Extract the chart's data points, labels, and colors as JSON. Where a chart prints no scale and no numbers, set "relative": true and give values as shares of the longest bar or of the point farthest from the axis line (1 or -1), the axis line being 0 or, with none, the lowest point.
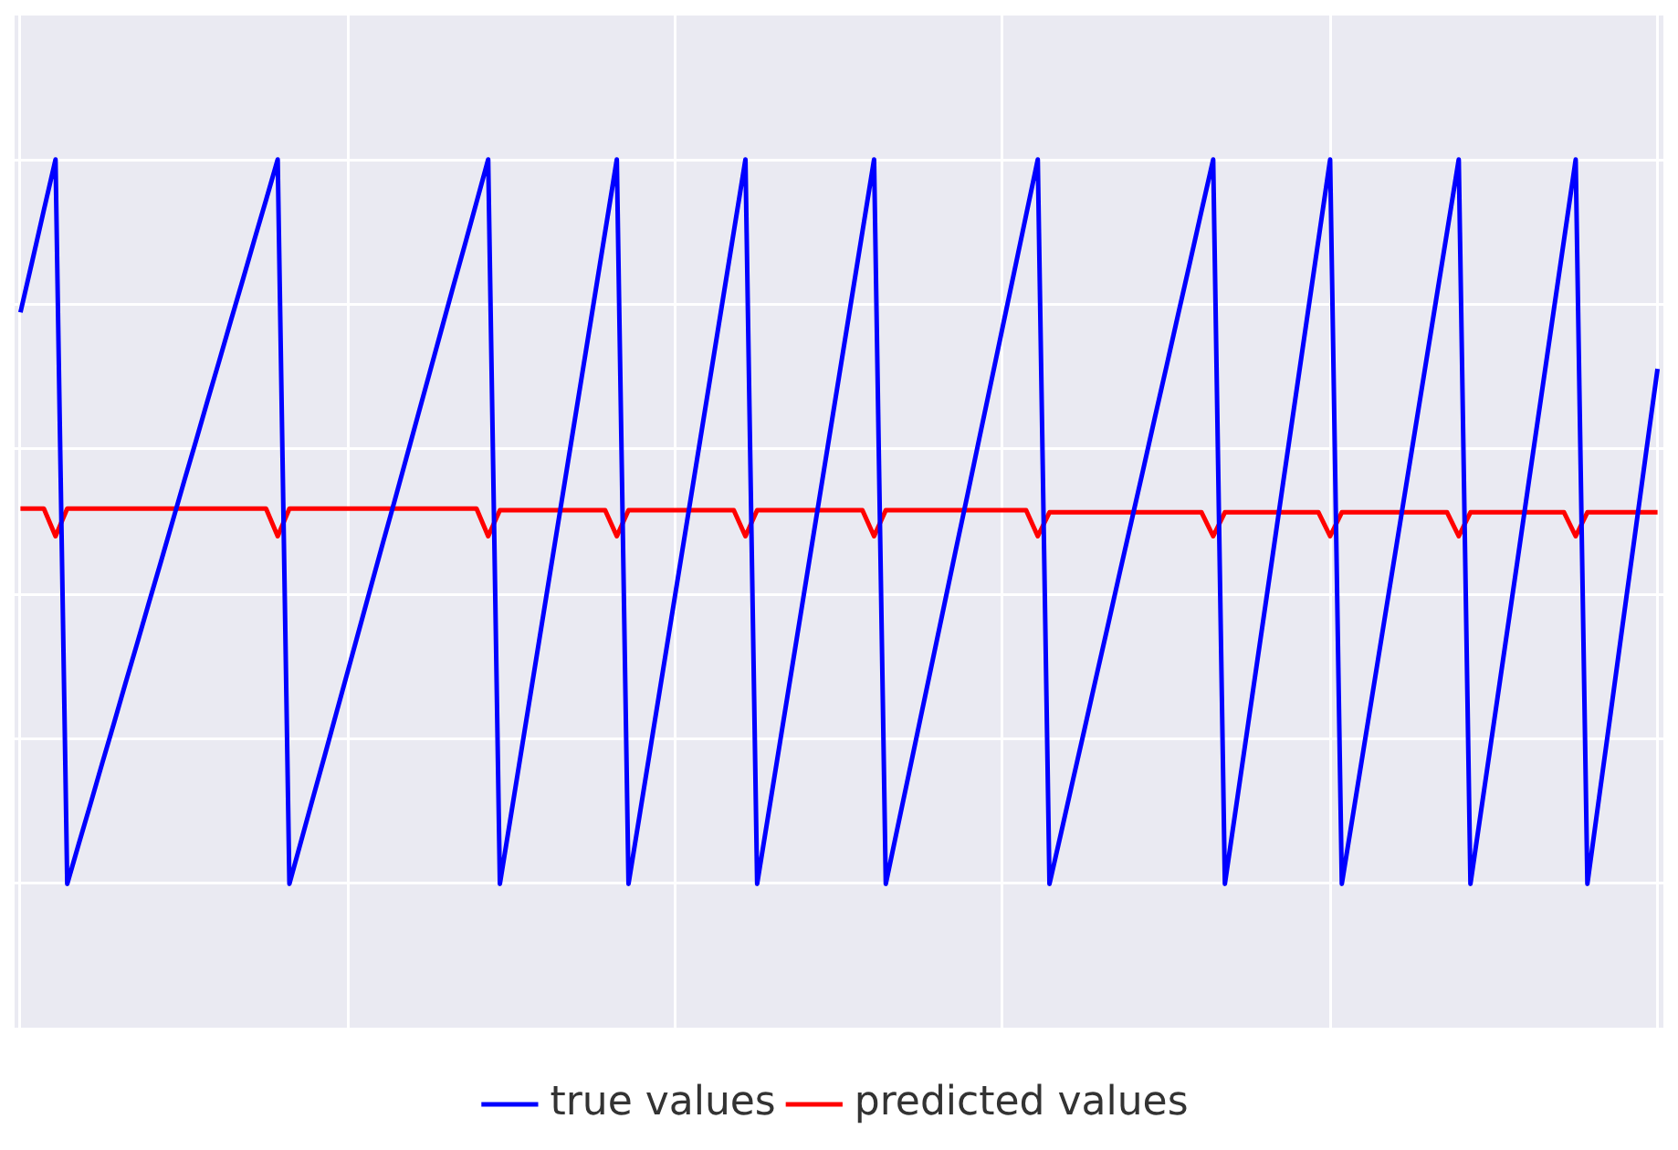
{
  "chart_data": {
    "type": "line",
    "relative": true,
    "grid": true,
    "legend": "bottom",
    "marker": "none",
    "line_style": "solid",
    "categories": [
      null,
      null,
      null,
      null,
      null,
      null,
      null,
      null,
      null,
      null,
      null,
      null,
      null,
      null,
      null,
      null,
      null,
      null,
      null,
      null,
      null,
      null,
      null,
      null,
      null,
      null,
      null,
      null,
      null,
      null,
      null,
      null,
      null,
      null,
      null,
      null,
      null,
      null,
      null,
      null,
      null,
      null,
      null,
      null,
      null,
      null,
      null,
      null,
      null,
      null,
      null,
      null,
      null,
      null,
      null,
      null,
      null,
      null,
      null,
      null,
      null,
      null,
      null,
      null,
      null,
      null,
      null,
      null,
      null,
      null,
      null,
      null,
      null,
      null,
      null,
      null,
      null,
      null,
      null,
      null,
      null,
      null,
      null,
      null,
      null,
      null,
      null,
      null,
      null,
      null,
      null,
      null,
      null,
      null,
      null,
      null,
      null,
      null,
      null,
      null,
      null,
      null,
      null,
      null,
      null,
      null,
      null,
      null,
      null,
      null,
      null,
      null,
      null,
      null,
      null,
      null,
      null,
      null,
      null,
      null,
      null,
      null,
      null,
      null,
      null,
      null,
      null,
      null,
      null,
      null,
      null,
      null,
      null,
      null,
      null,
      null,
      null,
      null,
      null,
      null,
      null
    ],
    "series": [
      {
        "name": "true values",
        "color": "#0000ff",
        "values": [
          0.789,
          0.859,
          0.93,
          1,
          0,
          0.056,
          0.111,
          0.167,
          0.222,
          0.278,
          0.333,
          0.389,
          0.444,
          0.5,
          0.556,
          0.611,
          0.667,
          0.722,
          0.778,
          0.833,
          0.889,
          0.944,
          1,
          0,
          0.059,
          0.118,
          0.176,
          0.235,
          0.294,
          0.353,
          0.412,
          0.471,
          0.529,
          0.588,
          0.647,
          0.706,
          0.765,
          0.824,
          0.882,
          0.941,
          1,
          0,
          0.1,
          0.2,
          0.3,
          0.4,
          0.5,
          0.6,
          0.7,
          0.8,
          0.9,
          1,
          0,
          0.1,
          0.2,
          0.3,
          0.4,
          0.5,
          0.6,
          0.7,
          0.8,
          0.9,
          1,
          0,
          0.1,
          0.2,
          0.3,
          0.4,
          0.5,
          0.6,
          0.7,
          0.8,
          0.9,
          1,
          0,
          0.077,
          0.154,
          0.231,
          0.308,
          0.385,
          0.462,
          0.538,
          0.615,
          0.692,
          0.769,
          0.846,
          0.923,
          1,
          0,
          0.071,
          0.143,
          0.214,
          0.286,
          0.357,
          0.429,
          0.5,
          0.571,
          0.643,
          0.714,
          0.786,
          0.857,
          0.929,
          1,
          0,
          0.111,
          0.222,
          0.333,
          0.444,
          0.556,
          0.667,
          0.778,
          0.889,
          1,
          0,
          0.1,
          0.2,
          0.3,
          0.4,
          0.5,
          0.6,
          0.7,
          0.8,
          0.9,
          1,
          0,
          0.111,
          0.222,
          0.333,
          0.444,
          0.556,
          0.667,
          0.778,
          0.889,
          1,
          0,
          0.119,
          0.237,
          0.356,
          0.474,
          0.593,
          0.711
        ]
      },
      {
        "name": "predicted values",
        "color": "#ff0000",
        "values": [
          0.518,
          0.518,
          0.518,
          0.48,
          0.518,
          0.518,
          0.518,
          0.518,
          0.518,
          0.518,
          0.518,
          0.518,
          0.518,
          0.518,
          0.518,
          0.518,
          0.518,
          0.518,
          0.518,
          0.518,
          0.518,
          0.518,
          0.48,
          0.518,
          0.518,
          0.518,
          0.518,
          0.518,
          0.518,
          0.518,
          0.518,
          0.518,
          0.518,
          0.518,
          0.518,
          0.518,
          0.518,
          0.518,
          0.518,
          0.518,
          0.48,
          0.516,
          0.516,
          0.516,
          0.516,
          0.516,
          0.516,
          0.516,
          0.516,
          0.516,
          0.516,
          0.48,
          0.516,
          0.516,
          0.516,
          0.516,
          0.516,
          0.516,
          0.516,
          0.516,
          0.516,
          0.516,
          0.48,
          0.516,
          0.516,
          0.516,
          0.516,
          0.516,
          0.516,
          0.516,
          0.516,
          0.516,
          0.516,
          0.48,
          0.516,
          0.516,
          0.516,
          0.516,
          0.516,
          0.516,
          0.516,
          0.516,
          0.516,
          0.516,
          0.516,
          0.516,
          0.516,
          0.48,
          0.513,
          0.513,
          0.513,
          0.513,
          0.513,
          0.513,
          0.513,
          0.513,
          0.513,
          0.513,
          0.513,
          0.513,
          0.513,
          0.513,
          0.48,
          0.513,
          0.513,
          0.513,
          0.513,
          0.513,
          0.513,
          0.513,
          0.513,
          0.513,
          0.48,
          0.513,
          0.513,
          0.513,
          0.513,
          0.513,
          0.513,
          0.513,
          0.513,
          0.513,
          0.513,
          0.48,
          0.513,
          0.513,
          0.513,
          0.513,
          0.513,
          0.513,
          0.513,
          0.513,
          0.513,
          0.48,
          0.513,
          0.513,
          0.513,
          0.513,
          0.513,
          0.513,
          0.513
        ]
      }
    ]
  }
}
